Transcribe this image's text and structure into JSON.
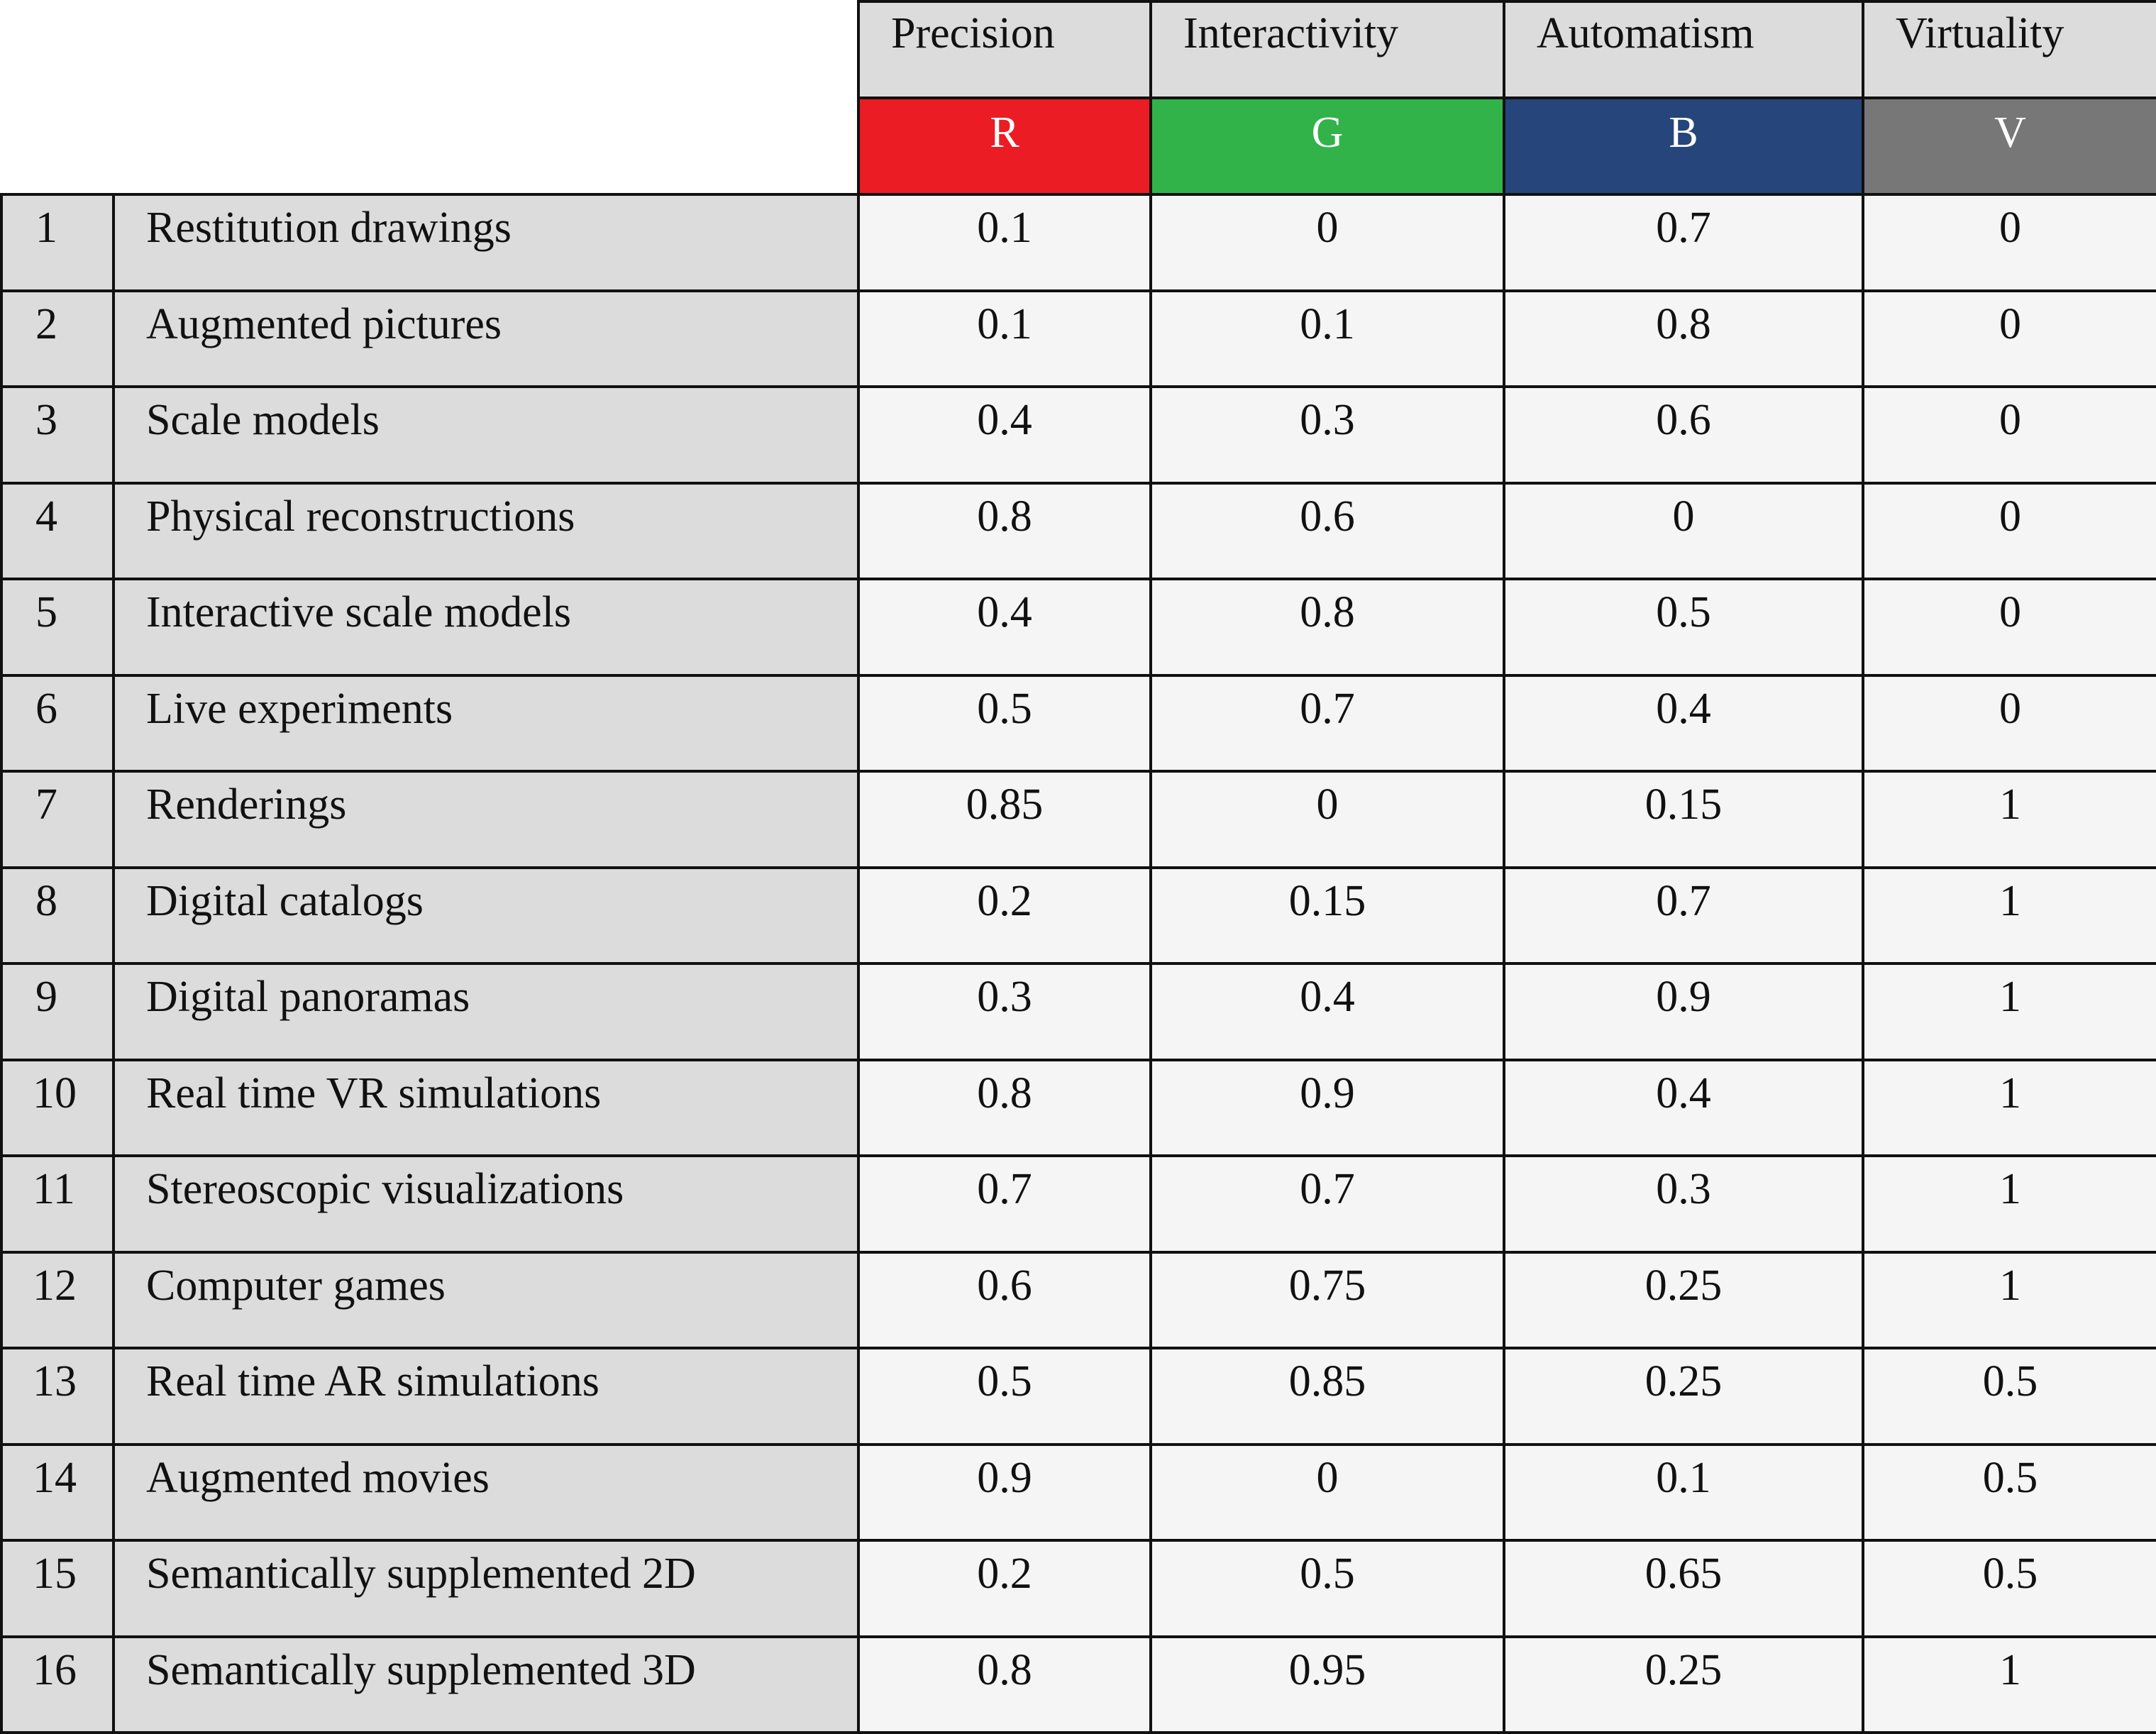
{
  "columns": [
    {
      "name": "Precision",
      "code": "R",
      "color": "#ec1c24"
    },
    {
      "name": "Interactivity",
      "code": "G",
      "color": "#31b34a"
    },
    {
      "name": "Automatism",
      "code": "B",
      "color": "#26457a"
    },
    {
      "name": "Virtuality",
      "code": "V",
      "color": "#777777"
    }
  ],
  "rows": [
    {
      "num": "1",
      "label": "Restitution drawings",
      "values": [
        "0.1",
        "0",
        "0.7",
        "0"
      ]
    },
    {
      "num": "2",
      "label": "Augmented pictures",
      "values": [
        "0.1",
        "0.1",
        "0.8",
        "0"
      ]
    },
    {
      "num": "3",
      "label": "Scale models",
      "values": [
        "0.4",
        "0.3",
        "0.6",
        "0"
      ]
    },
    {
      "num": "4",
      "label": "Physical reconstructions",
      "values": [
        "0.8",
        "0.6",
        "0",
        "0"
      ]
    },
    {
      "num": "5",
      "label": "Interactive scale models",
      "values": [
        "0.4",
        "0.8",
        "0.5",
        "0"
      ]
    },
    {
      "num": "6",
      "label": "Live experiments",
      "values": [
        "0.5",
        "0.7",
        "0.4",
        "0"
      ]
    },
    {
      "num": "7",
      "label": "Renderings",
      "values": [
        "0.85",
        "0",
        "0.15",
        "1"
      ]
    },
    {
      "num": "8",
      "label": "Digital catalogs",
      "values": [
        "0.2",
        "0.15",
        "0.7",
        "1"
      ]
    },
    {
      "num": "9",
      "label": "Digital panoramas",
      "values": [
        "0.3",
        "0.4",
        "0.9",
        "1"
      ]
    },
    {
      "num": "10",
      "label": "Real time VR simulations",
      "values": [
        "0.8",
        "0.9",
        "0.4",
        "1"
      ]
    },
    {
      "num": "11",
      "label": "Stereoscopic visualizations",
      "values": [
        "0.7",
        "0.7",
        "0.3",
        "1"
      ]
    },
    {
      "num": "12",
      "label": "Computer games",
      "values": [
        "0.6",
        "0.75",
        "0.25",
        "1"
      ]
    },
    {
      "num": "13",
      "label": "Real time AR simulations",
      "values": [
        "0.5",
        "0.85",
        "0.25",
        "0.5"
      ]
    },
    {
      "num": "14",
      "label": "Augmented movies",
      "values": [
        "0.9",
        "0",
        "0.1",
        "0.5"
      ]
    },
    {
      "num": "15",
      "label": "Semantically supplemented 2D",
      "values": [
        "0.2",
        "0.5",
        "0.65",
        "0.5"
      ]
    },
    {
      "num": "16",
      "label": "Semantically supplemented 3D",
      "values": [
        "0.8",
        "0.95",
        "0.25",
        "1"
      ]
    }
  ]
}
